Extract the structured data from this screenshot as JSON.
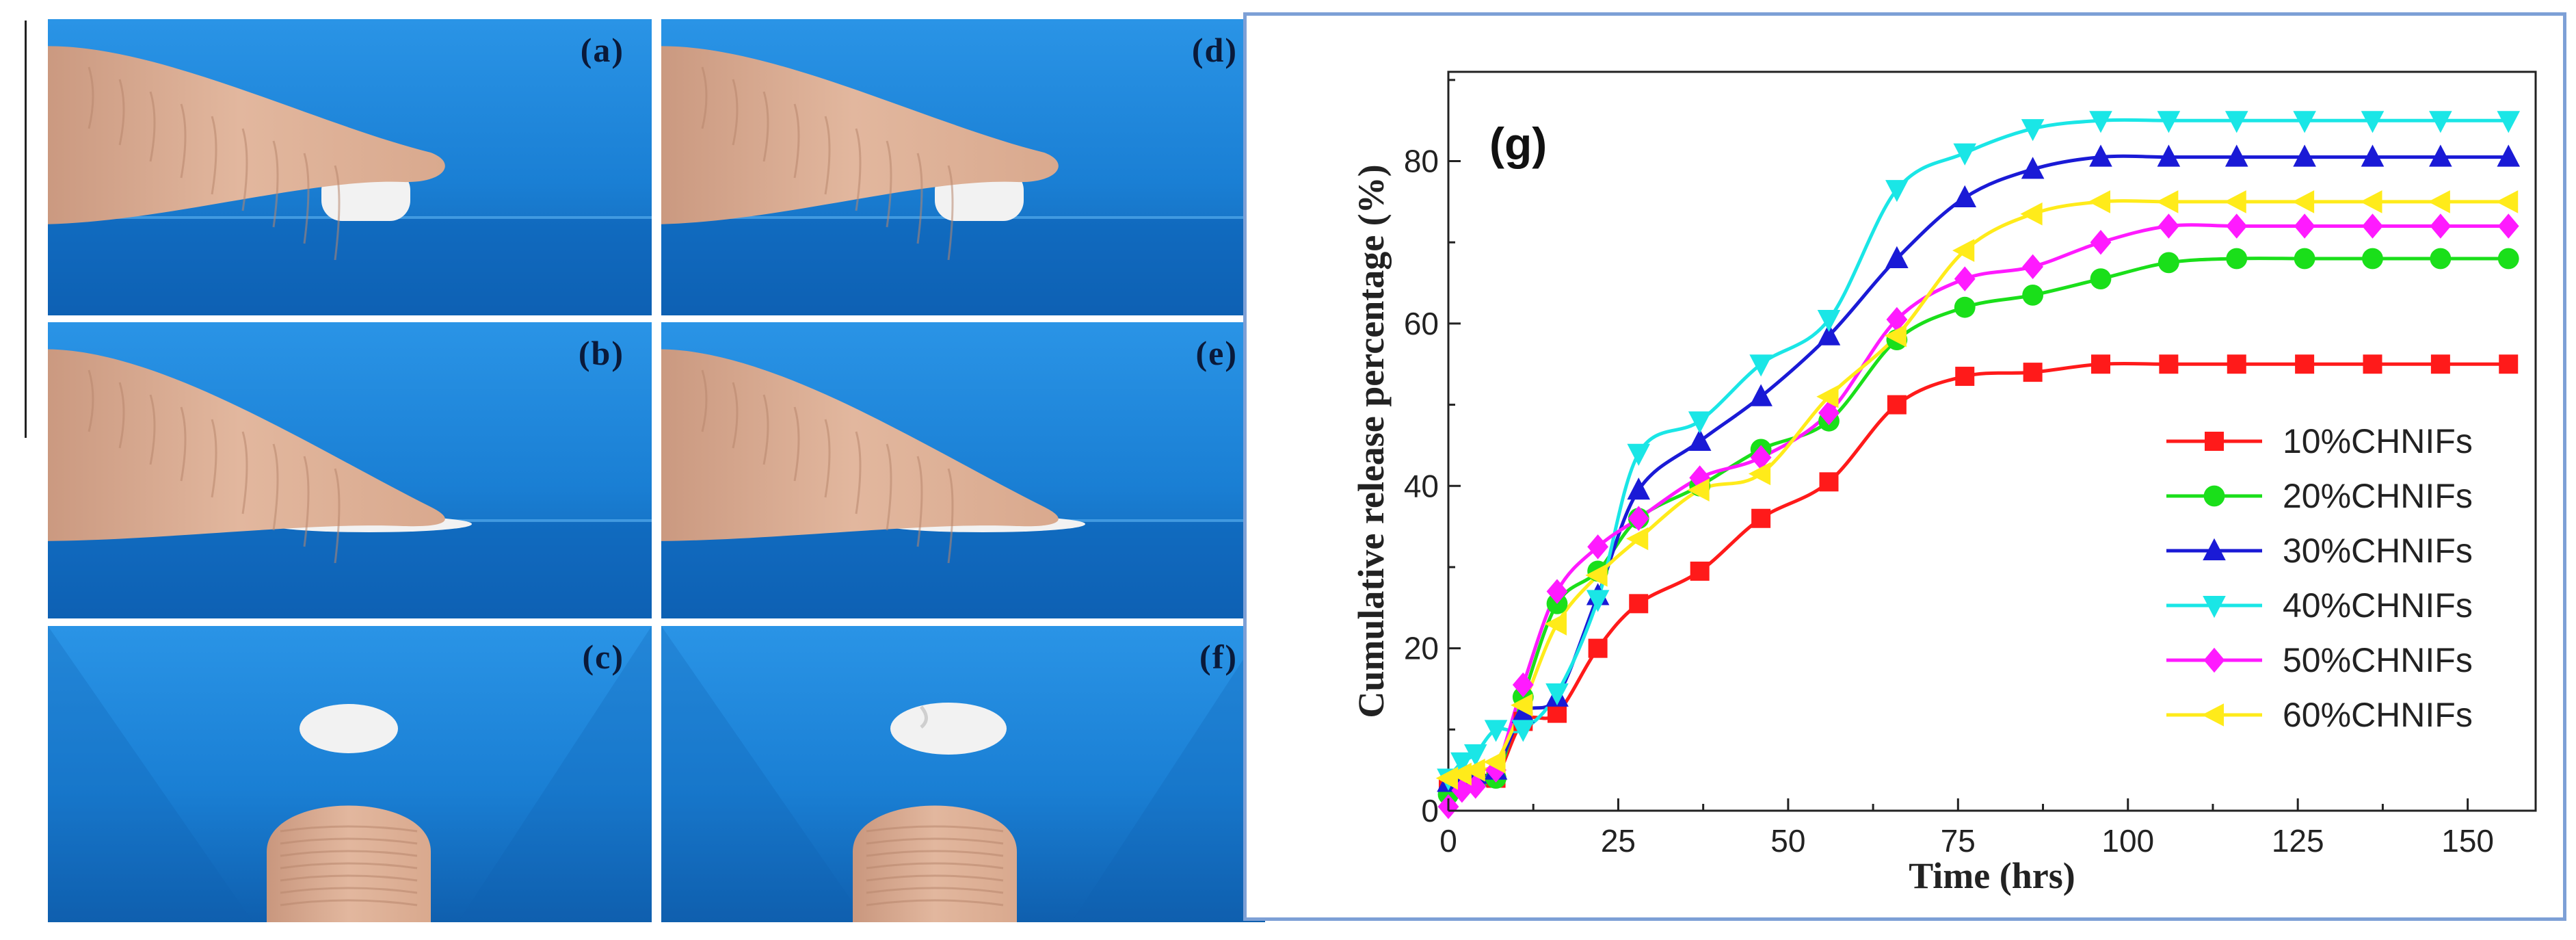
{
  "figure": {
    "photo_panels": [
      {
        "label": "(a)",
        "scene": "finger-press"
      },
      {
        "label": "(b)",
        "scene": "finger-flat"
      },
      {
        "label": "(c)",
        "scene": "thumb-disc"
      },
      {
        "label": "(d)",
        "scene": "finger-press"
      },
      {
        "label": "(e)",
        "scene": "finger-flat"
      },
      {
        "label": "(f)",
        "scene": "thumb-disc-split"
      }
    ]
  },
  "colors": {
    "background_blue": "#1a7fd4",
    "skin": "#e2b79e",
    "sample": "#f2f2f2"
  },
  "chart_data": {
    "type": "line",
    "panel_label": "(g)",
    "xlabel": "Time (hrs)",
    "ylabel": "Cumulative release percentage (%)",
    "xlim": [
      0,
      160
    ],
    "ylim": [
      0,
      91
    ],
    "xticks": [
      0,
      25,
      50,
      75,
      100,
      125,
      150
    ],
    "yticks": [
      0,
      20,
      40,
      60,
      80
    ],
    "legend_position": "right-middle",
    "grid": false,
    "series": [
      {
        "name": "10%CHNIFs",
        "color": "#ff1a1a",
        "marker": "square",
        "x": [
          0,
          2,
          4,
          7,
          11,
          16,
          22,
          28,
          37,
          46,
          56,
          66,
          76,
          86,
          96,
          106,
          116,
          126,
          136,
          146,
          156
        ],
        "y": [
          3,
          3.5,
          4,
          4,
          11,
          12,
          20,
          25.5,
          29.5,
          36,
          40.5,
          50,
          53.5,
          54,
          55,
          55,
          55,
          55,
          55,
          55,
          55
        ]
      },
      {
        "name": "20%CHNIFs",
        "color": "#1adf1a",
        "marker": "circle",
        "x": [
          0,
          2,
          4,
          7,
          11,
          16,
          22,
          28,
          37,
          46,
          56,
          66,
          76,
          86,
          96,
          106,
          116,
          126,
          136,
          146,
          156
        ],
        "y": [
          2,
          3,
          3.5,
          4,
          14,
          25.5,
          29.5,
          36,
          40,
          44.5,
          48,
          58,
          62,
          63.5,
          65.5,
          67.5,
          68,
          68,
          68,
          68,
          68
        ]
      },
      {
        "name": "30%CHNIFs",
        "color": "#1a1ad6",
        "marker": "triangle-up",
        "x": [
          0,
          2,
          4,
          7,
          11,
          16,
          22,
          28,
          37,
          46,
          56,
          66,
          76,
          86,
          96,
          106,
          116,
          126,
          136,
          146,
          156
        ],
        "y": [
          3.5,
          4,
          4.5,
          5,
          12,
          14,
          26.5,
          39.5,
          45.5,
          51,
          58.5,
          68,
          75.5,
          79,
          80.5,
          80.5,
          80.5,
          80.5,
          80.5,
          80.5,
          80.5
        ]
      },
      {
        "name": "40%CHNIFs",
        "color": "#1ae6e6",
        "marker": "triangle-down",
        "x": [
          0,
          2,
          4,
          7,
          11,
          16,
          22,
          28,
          37,
          46,
          56,
          66,
          76,
          86,
          96,
          106,
          116,
          126,
          136,
          146,
          156
        ],
        "y": [
          4,
          6,
          7,
          10,
          10,
          14.5,
          26,
          44,
          48,
          55,
          60.5,
          76.5,
          81,
          84,
          85,
          85,
          85,
          85,
          85,
          85,
          85
        ]
      },
      {
        "name": "50%CHNIFs",
        "color": "#ff1aff",
        "marker": "diamond",
        "x": [
          0,
          2,
          4,
          7,
          11,
          16,
          22,
          28,
          37,
          46,
          56,
          66,
          76,
          86,
          96,
          106,
          116,
          126,
          136,
          146,
          156
        ],
        "y": [
          0.5,
          2.5,
          3,
          5,
          15.5,
          27,
          32.5,
          36,
          41,
          43.5,
          49,
          60.5,
          65.5,
          67,
          70,
          72,
          72,
          72,
          72,
          72,
          72
        ]
      },
      {
        "name": "60%CHNIFs",
        "color": "#ffeb1a",
        "marker": "triangle-left",
        "x": [
          0,
          2,
          4,
          7,
          11,
          16,
          22,
          28,
          37,
          46,
          56,
          66,
          76,
          86,
          96,
          106,
          116,
          126,
          136,
          146,
          156
        ],
        "y": [
          4,
          4.5,
          5,
          6,
          13,
          23,
          29,
          33.5,
          39.5,
          41.5,
          51,
          58.5,
          69,
          73.5,
          75,
          75,
          75,
          75,
          75,
          75,
          75
        ]
      }
    ]
  }
}
